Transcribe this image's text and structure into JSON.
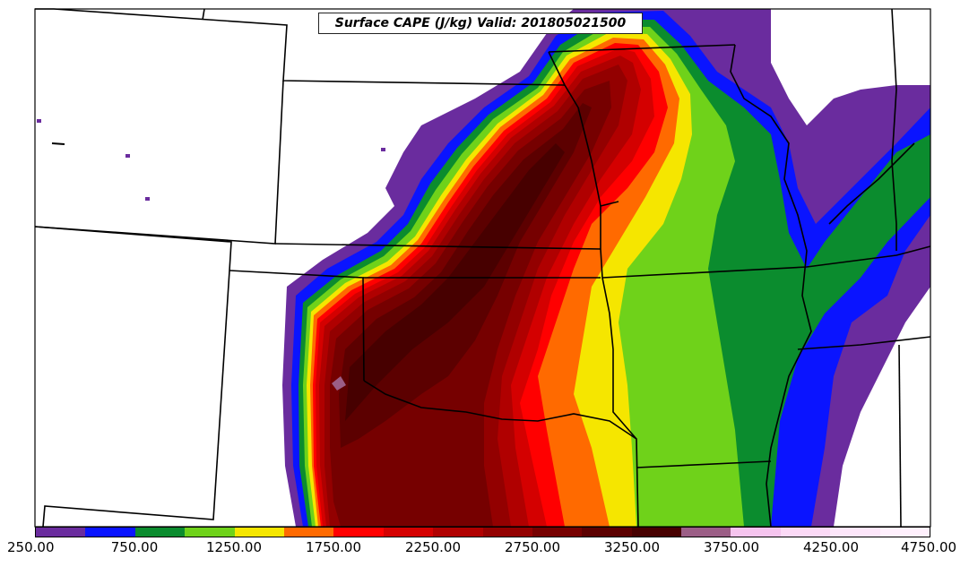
{
  "title": "Surface CAPE (J/kg) Valid: 201805021500",
  "colorbar": {
    "units": "J/kg",
    "min": 250,
    "max": 4750,
    "bins": [
      {
        "from": 250,
        "to": 500,
        "color": "#6a2c9e"
      },
      {
        "from": 500,
        "to": 750,
        "color": "#0a14ff"
      },
      {
        "from": 750,
        "to": 1000,
        "color": "#0b8c2e"
      },
      {
        "from": 1000,
        "to": 1250,
        "color": "#6fd21a"
      },
      {
        "from": 1250,
        "to": 1500,
        "color": "#f5e600"
      },
      {
        "from": 1500,
        "to": 1750,
        "color": "#ff6a00"
      },
      {
        "from": 1750,
        "to": 2000,
        "color": "#ff0000"
      },
      {
        "from": 2000,
        "to": 2250,
        "color": "#d40000"
      },
      {
        "from": 2250,
        "to": 2500,
        "color": "#b00000"
      },
      {
        "from": 2500,
        "to": 2750,
        "color": "#930000"
      },
      {
        "from": 2750,
        "to": 3000,
        "color": "#760000"
      },
      {
        "from": 3000,
        "to": 3250,
        "color": "#5c0000"
      },
      {
        "from": 3250,
        "to": 3500,
        "color": "#470000"
      },
      {
        "from": 3500,
        "to": 3750,
        "color": "#9b5e86"
      },
      {
        "from": 3750,
        "to": 4000,
        "color": "#f5c4ee"
      },
      {
        "from": 4000,
        "to": 4250,
        "color": "#fbd9f6"
      },
      {
        "from": 4250,
        "to": 4500,
        "color": "#fde6fa"
      },
      {
        "from": 4500,
        "to": 4750,
        "color": "#fff0fd"
      }
    ],
    "tick_labels": [
      "250.00",
      "750.00",
      "1250.00",
      "1750.00",
      "2250.00",
      "2750.00",
      "3250.00",
      "3750.00",
      "4250.00",
      "4750.00"
    ]
  }
}
